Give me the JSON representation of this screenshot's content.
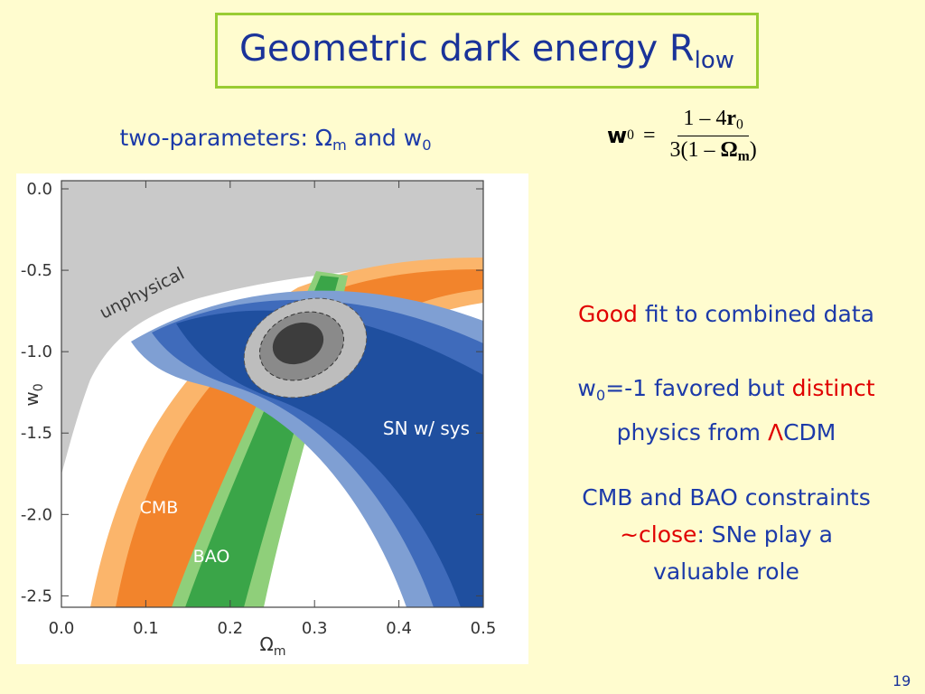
{
  "slide": {
    "title": [
      {
        "text": "Geometric dark energy R"
      },
      {
        "text": "low",
        "sub": true
      }
    ],
    "subtitle": [
      {
        "text": "two-parameters: "
      },
      {
        "text": "Ω"
      },
      {
        "text": "m",
        "sub": true
      },
      {
        "text": " and w"
      },
      {
        "text": "0",
        "sub": true
      }
    ],
    "formula": {
      "lhs": "w",
      "lhs_sub": "0",
      "eq": "=",
      "num": [
        "1 – 4",
        "r",
        "0"
      ],
      "den": [
        "3(1 – ",
        "Ω",
        "m",
        ")"
      ]
    },
    "bullets": [
      {
        "lines": [
          [
            {
              "text": "Good",
              "color": "#e00000"
            },
            {
              "text": " fit to combined data"
            }
          ]
        ]
      },
      {
        "lines": [
          [
            {
              "text": "w"
            },
            {
              "text": "0",
              "sub": true
            },
            {
              "text": "=-1 favored but "
            },
            {
              "text": "distinct",
              "color": "#e00000"
            }
          ],
          [
            {
              "text": "physics from "
            },
            {
              "text": "Λ",
              "color": "#e00000"
            },
            {
              "text": "CDM"
            }
          ]
        ]
      },
      {
        "lines": [
          [
            {
              "text": "CMB and BAO constraints"
            }
          ],
          [
            {
              "text": "~",
              "color": "#e00000"
            },
            {
              "text": "close",
              "color": "#e00000"
            },
            {
              "text": ": SNe play a"
            }
          ],
          [
            {
              "text": "valuable role"
            }
          ]
        ]
      }
    ],
    "page_number": "19"
  },
  "chart_data": {
    "type": "contour",
    "x_label": {
      "symbol": "Ω",
      "sub": "m"
    },
    "y_label": {
      "symbol": "w",
      "sub": "0"
    },
    "xlim": [
      0,
      0.5
    ],
    "xticks": [
      {
        "value": 0,
        "label": "0.0"
      },
      0.1,
      0.2,
      0.3,
      0.4,
      0.5
    ],
    "ylim": [
      -2.57,
      0.05
    ],
    "yticks": [
      {
        "value": 0,
        "label": "0.0"
      },
      -0.5,
      {
        "value": -1,
        "label": "-1.0"
      },
      -1.5,
      {
        "value": -2,
        "label": "-2.0"
      },
      -2.5
    ],
    "annotations": [
      "unphysical",
      "CMB",
      "BAO",
      "SN w/ sys"
    ]
  }
}
